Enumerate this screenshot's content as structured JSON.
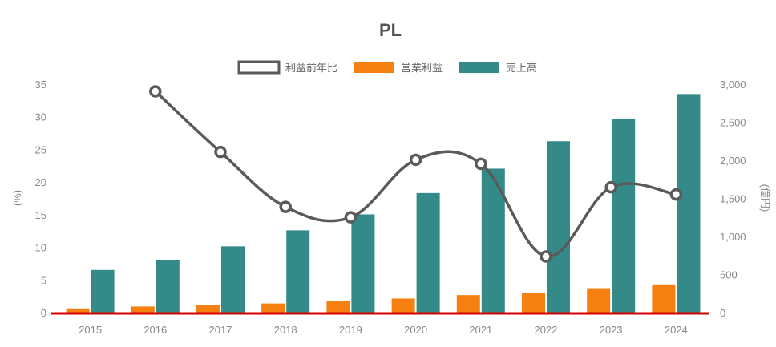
{
  "chart_data": {
    "type": "bar",
    "title": "PL",
    "categories": [
      "2015",
      "2016",
      "2017",
      "2018",
      "2019",
      "2020",
      "2021",
      "2022",
      "2023",
      "2024"
    ],
    "series": [
      {
        "name": "利益前年比",
        "type": "line",
        "axis": "left",
        "unit": "%",
        "values": [
          null,
          33.9,
          24.6,
          16.2,
          14.6,
          23.4,
          22.8,
          8.6,
          19.2,
          18.1
        ],
        "color": "#5a5a5a"
      },
      {
        "name": "営業利益",
        "type": "bar",
        "axis": "right",
        "unit": "億円",
        "values": [
          55,
          80,
          100,
          120,
          150,
          185,
          230,
          260,
          310,
          360
        ],
        "color": "#f57f0f"
      },
      {
        "name": "売上高",
        "type": "bar",
        "axis": "right",
        "unit": "億円",
        "values": [
          560,
          690,
          870,
          1080,
          1290,
          1570,
          1890,
          2250,
          2540,
          2870
        ],
        "color": "#348a88"
      }
    ],
    "y_left": {
      "label": "(%)",
      "min": 0,
      "max": 35,
      "ticks": [
        "0",
        "5",
        "10",
        "15",
        "20",
        "25",
        "30",
        "35"
      ]
    },
    "y_right": {
      "label": "(億円)",
      "min": 0,
      "max": 3000,
      "ticks": [
        "0",
        "500",
        "1,000",
        "1,500",
        "2,000",
        "2,500",
        "3,000"
      ]
    },
    "legend_position": "top",
    "grid": false
  }
}
